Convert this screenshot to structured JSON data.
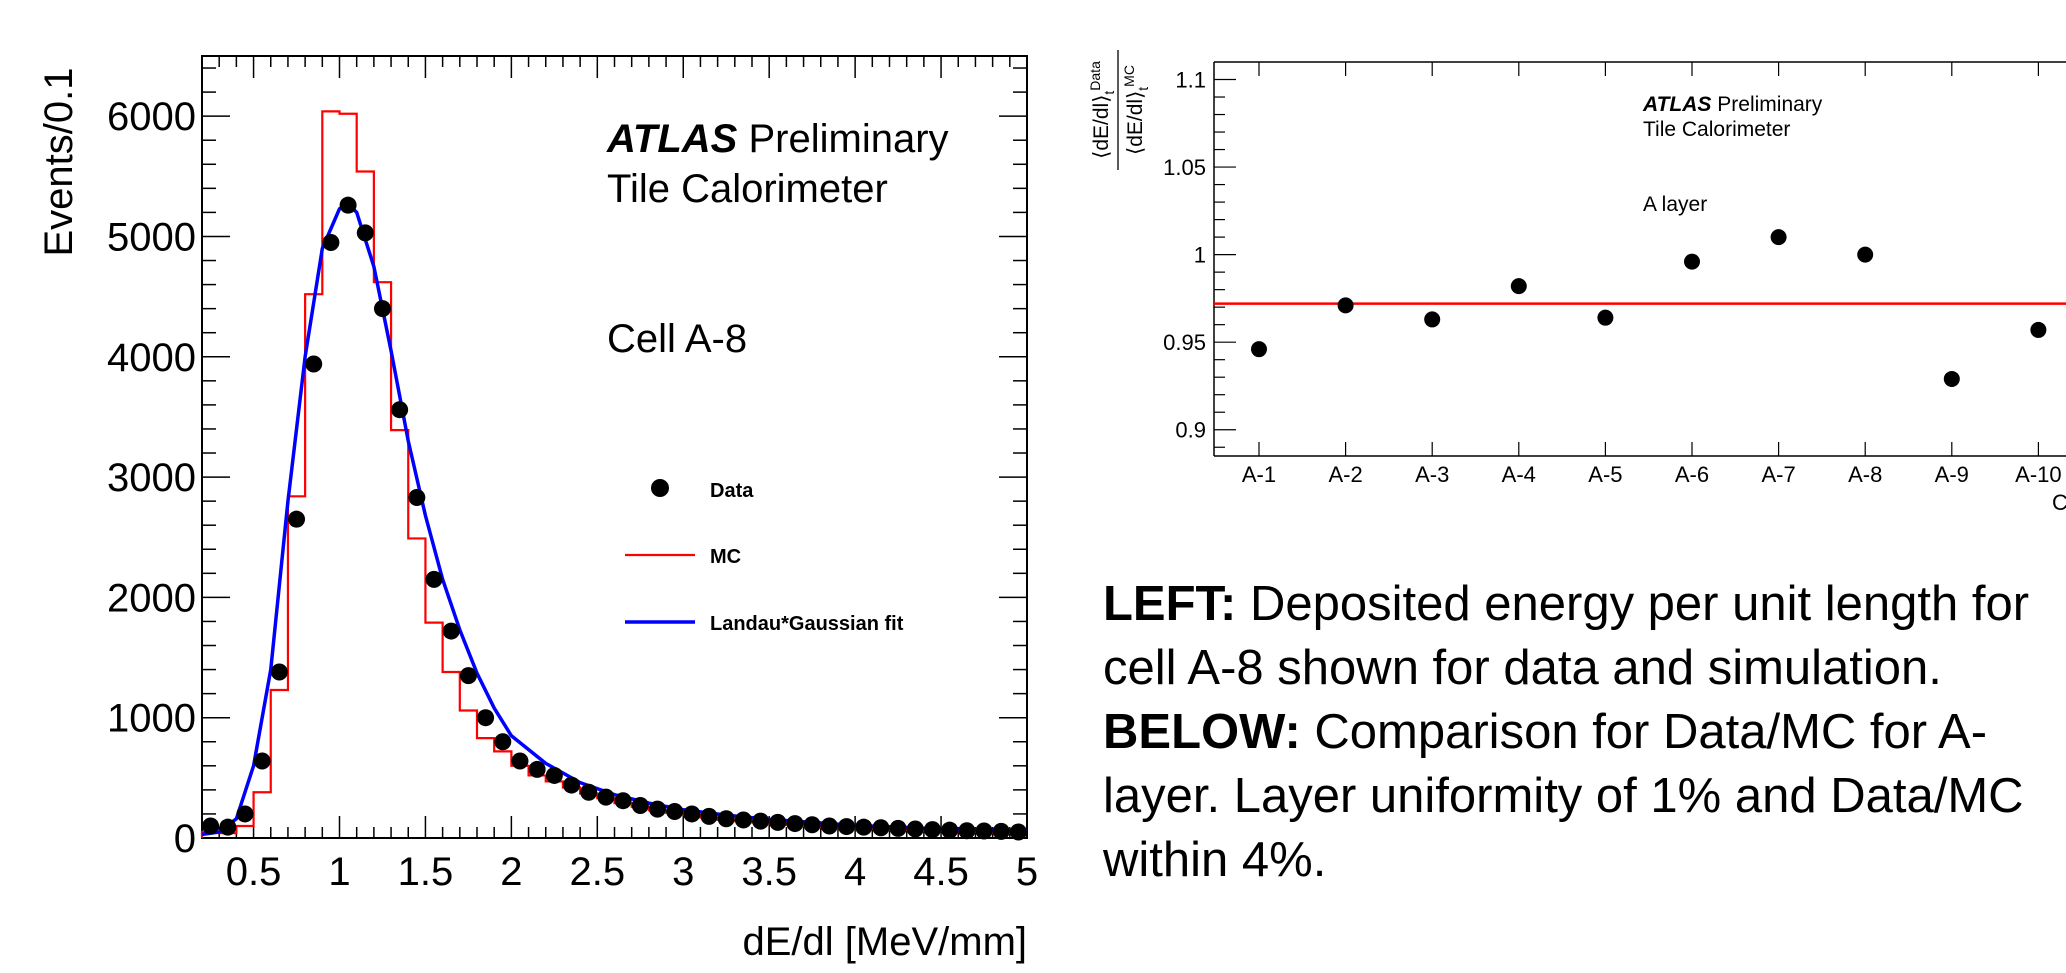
{
  "chart_data": [
    {
      "type": "line",
      "atlas_label": "ATLAS",
      "preliminary_label": "Preliminary",
      "subtitle": "Tile Calorimeter",
      "annotation": "Cell A-8",
      "xlabel": "dE/dl [MeV/mm]",
      "ylabel": "Events/0.1",
      "xlim": [
        0.2,
        5.0
      ],
      "ylim": [
        0,
        6500
      ],
      "x_ticks": [
        "0.5",
        "1",
        "1.5",
        "2",
        "2.5",
        "3",
        "3.5",
        "4",
        "4.5",
        "5"
      ],
      "y_ticks": [
        "0",
        "1000",
        "2000",
        "3000",
        "4000",
        "5000",
        "6000"
      ],
      "legend": {
        "position": "right",
        "entries": [
          "Data",
          "MC",
          "Landau*Gaussian fit"
        ]
      },
      "colors": {
        "data": "#000000",
        "mc": "#ff0000",
        "fit": "#0000ff"
      },
      "series": [
        {
          "name": "Data",
          "style": "markers",
          "x": [
            0.25,
            0.35,
            0.45,
            0.55,
            0.65,
            0.75,
            0.85,
            0.95,
            1.05,
            1.15,
            1.25,
            1.35,
            1.45,
            1.55,
            1.65,
            1.75,
            1.85,
            1.95,
            2.05,
            2.15,
            2.25,
            2.35,
            2.45,
            2.55,
            2.65,
            2.75,
            2.85,
            2.95,
            3.05,
            3.15,
            3.25,
            3.35,
            3.45,
            3.55,
            3.65,
            3.75,
            3.85,
            3.95,
            4.05,
            4.15,
            4.25,
            4.35,
            4.45,
            4.55,
            4.65,
            4.75,
            4.85,
            4.95
          ],
          "y": [
            100,
            90,
            200,
            640,
            1380,
            2650,
            3940,
            4950,
            5260,
            5030,
            4400,
            3560,
            2830,
            2150,
            1720,
            1350,
            1000,
            800,
            640,
            570,
            520,
            440,
            380,
            340,
            310,
            270,
            240,
            220,
            200,
            180,
            160,
            150,
            140,
            130,
            120,
            110,
            100,
            95,
            90,
            85,
            80,
            75,
            70,
            65,
            60,
            58,
            55,
            50
          ]
        },
        {
          "name": "MC",
          "style": "step",
          "edges": [
            0.2,
            0.3,
            0.4,
            0.5,
            0.6,
            0.7,
            0.8,
            0.9,
            1.0,
            1.1,
            1.2,
            1.3,
            1.4,
            1.5,
            1.6,
            1.7,
            1.8,
            1.9,
            2.0,
            2.1,
            2.2,
            2.3,
            2.4,
            2.5,
            2.6,
            2.7,
            2.8,
            2.9,
            3.0,
            3.1,
            3.2,
            3.3,
            3.4,
            3.5,
            3.6,
            3.7,
            3.8,
            3.9,
            4.0,
            4.1,
            4.2,
            4.3,
            4.4,
            4.5,
            4.6,
            4.7,
            4.8,
            4.9,
            5.0
          ],
          "values": [
            50,
            40,
            100,
            380,
            1230,
            2840,
            4520,
            6040,
            6020,
            5540,
            4620,
            3390,
            2490,
            1790,
            1380,
            1060,
            830,
            720,
            600,
            520,
            470,
            420,
            370,
            330,
            290,
            260,
            230,
            210,
            190,
            170,
            150,
            140,
            130,
            120,
            110,
            100,
            90,
            85,
            80,
            75,
            70,
            65,
            60,
            57,
            54,
            51,
            48,
            45
          ]
        },
        {
          "name": "Landau*Gaussian fit",
          "style": "curve",
          "x": [
            0.2,
            0.3,
            0.4,
            0.5,
            0.6,
            0.7,
            0.8,
            0.9,
            1.0,
            1.05,
            1.1,
            1.2,
            1.3,
            1.4,
            1.5,
            1.6,
            1.7,
            1.8,
            1.9,
            2.0,
            2.2,
            2.4,
            2.6,
            2.8,
            3.0,
            3.25,
            3.5,
            3.75,
            4.0,
            4.25,
            4.5,
            4.75,
            5.0
          ],
          "y": [
            30,
            50,
            160,
            600,
            1400,
            2800,
            4000,
            4900,
            5230,
            5270,
            5200,
            4750,
            4050,
            3300,
            2680,
            2150,
            1730,
            1370,
            1080,
            850,
            620,
            460,
            360,
            290,
            235,
            190,
            155,
            130,
            105,
            90,
            75,
            65,
            55
          ]
        }
      ]
    },
    {
      "type": "scatter",
      "atlas_label": "ATLAS",
      "preliminary_label": "Preliminary",
      "subtitle": "Tile Calorimeter",
      "annotation": "A layer",
      "ylabel": "⟨dE/dl⟩ Data / ⟨dE/dl⟩ MC",
      "ylabel_num_base": "⟨dE/dl⟩",
      "ylabel_num_sub": "t",
      "ylabel_num_sup": "Data",
      "ylabel_den_base": "⟨dE/dl⟩",
      "ylabel_den_sub": "t",
      "ylabel_den_sup": "MC",
      "xlabel": "Ce",
      "ylim": [
        0.885,
        1.11
      ],
      "y_ticks": [
        "0.9",
        "0.95",
        "1",
        "1.05",
        "1.1"
      ],
      "categories": [
        "A-1",
        "A-2",
        "A-3",
        "A-4",
        "A-5",
        "A-6",
        "A-7",
        "A-8",
        "A-9",
        "A-10"
      ],
      "values": [
        0.946,
        0.971,
        0.963,
        0.982,
        0.964,
        0.996,
        1.01,
        1.0,
        0.929,
        0.957
      ],
      "mean_line": 0.972,
      "colors": {
        "points": "#000000",
        "mean_line": "#ff0000"
      }
    }
  ],
  "caption": {
    "left_label": "LEFT:",
    "left_text": " Deposited energy per unit length for cell A-8 shown for data and simulation.",
    "below_label": "BELOW:",
    "below_text": " Comparison for Data/MC for A-layer. Layer uniformity of 1% and Data/MC within 4%."
  }
}
